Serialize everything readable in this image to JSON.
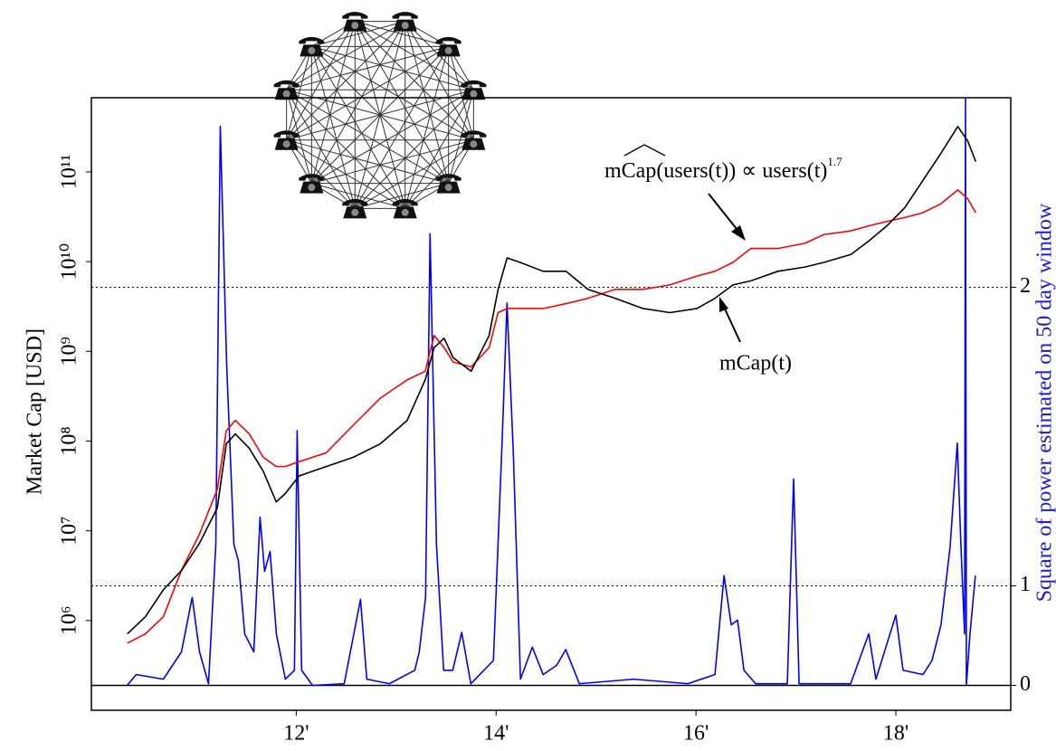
{
  "chart_data": {
    "type": "line",
    "xlim": [
      2009.95,
      2019.15
    ],
    "xticks": [
      {
        "value": 2012,
        "label": "12'"
      },
      {
        "value": 2014,
        "label": "14'"
      },
      {
        "value": 2016,
        "label": "16'"
      },
      {
        "value": 2018,
        "label": "18'"
      }
    ],
    "ylabel": "Market Cap [USD]",
    "ylog": true,
    "ylim": [
      100000,
      670000000000
    ],
    "yticks": [
      {
        "value": 1000000,
        "label": "10⁶"
      },
      {
        "value": 10000000,
        "label": "10⁷"
      },
      {
        "value": 100000000,
        "label": "10⁸"
      },
      {
        "value": 1000000000,
        "label": "10⁹"
      },
      {
        "value": 10000000000,
        "label": "10¹⁰"
      },
      {
        "value": 100000000000,
        "label": "10¹¹"
      }
    ],
    "y2label": "Square of power estimated on 50 day window",
    "y2label_color": "#1a1adb",
    "y2scale": "square",
    "y2lim": [
      -0.5,
      2.43
    ],
    "y2ticks": [
      0,
      1,
      2
    ],
    "y2grid": true,
    "annotations": [
      {
        "text": "mCap(users(t)) ∝ users(t)",
        "superscript": "1.7"
      },
      {
        "text": "mCap(t)"
      }
    ],
    "series": [
      {
        "color": "#000000",
        "x": [
          2010.31,
          2010.49,
          2010.67,
          2010.85,
          2011.03,
          2011.21,
          2011.3,
          2011.39,
          2011.53,
          2011.67,
          2011.8,
          2011.89,
          2012.03,
          2012.3,
          2012.57,
          2012.84,
          2013.11,
          2013.29,
          2013.38,
          2013.48,
          2013.57,
          2013.75,
          2013.93,
          2014.02,
          2014.11,
          2014.24,
          2014.47,
          2014.7,
          2014.92,
          2015.19,
          2015.47,
          2015.74,
          2016.01,
          2016.19,
          2016.37,
          2016.55,
          2016.82,
          2017.09,
          2017.28,
          2017.55,
          2017.73,
          2017.91,
          2018.09,
          2018.27,
          2018.45,
          2018.62,
          2018.72,
          2018.8
        ],
        "values": [
          710000.0,
          1100000.0,
          2200000.0,
          3600000.0,
          7200000.0,
          18000000.0,
          93000000.0,
          120000000.0,
          83000000.0,
          46000000.0,
          21000000.0,
          26000000.0,
          41000000.0,
          52000000.0,
          66000000.0,
          93000000.0,
          170000000.0,
          480000000.0,
          1100000000.0,
          1400000000.0,
          850000000.0,
          600000000.0,
          1500000000.0,
          4900000000.0,
          11000000000.0,
          9800000000.0,
          7800000000.0,
          7800000000.0,
          4900000000.0,
          3900000000.0,
          3000000000.0,
          2700000000.0,
          3000000000.0,
          3900000000.0,
          5500000000.0,
          6100000000.0,
          7800000000.0,
          8700000000.0,
          9800000000.0,
          12000000000.0,
          17000000000.0,
          25000000000.0,
          40000000000.0,
          80000000000.0,
          160000000000.0,
          320000000000.0,
          220000000000.0,
          130000000000.0
        ]
      },
      {
        "color": "#ff0000",
        "x": [
          2010.31,
          2010.49,
          2010.67,
          2010.85,
          2011.03,
          2011.21,
          2011.3,
          2011.39,
          2011.53,
          2011.67,
          2011.8,
          2011.89,
          2012.03,
          2012.3,
          2012.57,
          2012.84,
          2013.11,
          2013.29,
          2013.38,
          2013.48,
          2013.57,
          2013.75,
          2013.93,
          2014.02,
          2014.11,
          2014.24,
          2014.47,
          2014.7,
          2014.92,
          2015.19,
          2015.47,
          2015.74,
          2016.01,
          2016.19,
          2016.37,
          2016.55,
          2016.82,
          2017.09,
          2017.28,
          2017.55,
          2017.73,
          2017.91,
          2018.09,
          2018.27,
          2018.45,
          2018.62,
          2018.72,
          2018.8
        ],
        "values": [
          560000.0,
          710000.0,
          1100000.0,
          3600000.0,
          9100000.0,
          29000000.0,
          130000000.0,
          170000000.0,
          120000000.0,
          66000000.0,
          52000000.0,
          52000000.0,
          59000000.0,
          74000000.0,
          150000000.0,
          300000000.0,
          480000000.0,
          600000000.0,
          1500000000.0,
          1100000000.0,
          760000000.0,
          670000000.0,
          1100000000.0,
          2700000000.0,
          3000000000.0,
          3000000000.0,
          3000000000.0,
          3400000000.0,
          3900000000.0,
          4900000000.0,
          4900000000.0,
          5500000000.0,
          6900000000.0,
          7800000000.0,
          9800000000.0,
          14000000000.0,
          14000000000.0,
          16000000000.0,
          20000000000.0,
          22000000000.0,
          25000000000.0,
          28000000000.0,
          31000000000.0,
          35000000000.0,
          44000000000.0,
          63000000000.0,
          50000000000.0,
          35000000000.0
        ]
      },
      {
        "color": "#0000ff",
        "axis": "y2",
        "x": [
          2010.308,
          2010.398,
          2010.67,
          2010.851,
          2010.959,
          2011.032,
          2011.122,
          2011.195,
          2011.24,
          2011.303,
          2011.376,
          2011.421,
          2011.484,
          2011.575,
          2011.638,
          2011.683,
          2011.738,
          2011.801,
          2011.891,
          2011.982,
          2012.009,
          2012.054,
          2012.163,
          2012.48,
          2012.643,
          2012.706,
          2012.932,
          2013.186,
          2013.231,
          2013.294,
          2013.339,
          2013.403,
          2013.475,
          2013.566,
          2013.656,
          2013.747,
          2013.973,
          2014.063,
          2014.109,
          2014.172,
          2014.244,
          2014.362,
          2014.471,
          2014.606,
          2014.697,
          2014.833,
          2015.376,
          2015.919,
          2016.19,
          2016.281,
          2016.353,
          2016.416,
          2016.48,
          2016.597,
          2016.914,
          2016.977,
          2017.032,
          2017.548,
          2017.729,
          2017.801,
          2018.0,
          2018.072,
          2018.271,
          2018.362,
          2018.452,
          2018.543,
          2018.615,
          2018.652,
          2018.688,
          2018.697,
          2018.706,
          2018.742,
          2018.796
        ],
        "values": [
          0,
          0.33,
          0.25,
          0.58,
          0.94,
          0.58,
          0.13,
          1.19,
          2.37,
          1.8,
          1.19,
          1.12,
          0.72,
          0.58,
          1.3,
          1.07,
          1.16,
          0.72,
          0.25,
          0.39,
          1.6,
          0.39,
          0,
          0.13,
          0.93,
          0.25,
          0.13,
          0.39,
          0.58,
          0.94,
          2.13,
          1.19,
          0.39,
          0.39,
          0.73,
          0.13,
          0.5,
          1.59,
          1.96,
          1.53,
          0.25,
          0.62,
          0.33,
          0.45,
          0.6,
          0.13,
          0.25,
          0.13,
          0.33,
          1.05,
          0.78,
          0.81,
          0.39,
          0.13,
          0.13,
          1.44,
          0.13,
          0.13,
          0.72,
          0.25,
          0.84,
          0.39,
          0.33,
          0.5,
          0.78,
          1.18,
          1.56,
          1.18,
          0.72,
          2.43,
          0,
          0.72,
          1.05
        ]
      }
    ]
  }
}
